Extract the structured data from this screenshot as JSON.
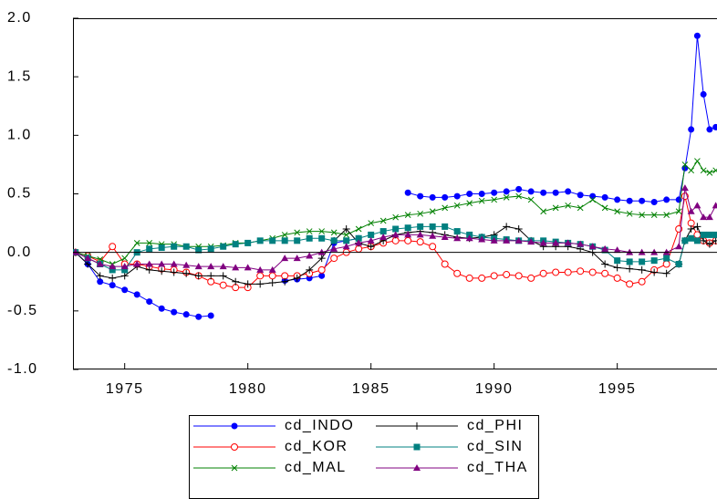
{
  "chart_data": {
    "type": "line",
    "x": [
      1973.0,
      1973.5,
      1974.0,
      1974.5,
      1975.0,
      1975.5,
      1976.0,
      1976.5,
      1977.0,
      1977.5,
      1978.0,
      1978.5,
      1979.0,
      1979.5,
      1980.0,
      1980.5,
      1981.0,
      1981.5,
      1982.0,
      1982.5,
      1983.0,
      1983.5,
      1984.0,
      1984.5,
      1985.0,
      1985.5,
      1986.0,
      1986.5,
      1987.0,
      1987.5,
      1988.0,
      1988.5,
      1989.0,
      1989.5,
      1990.0,
      1990.5,
      1991.0,
      1991.5,
      1992.0,
      1992.5,
      1993.0,
      1993.5,
      1994.0,
      1994.5,
      1995.0,
      1995.5,
      1996.0,
      1996.5,
      1997.0,
      1997.5,
      1997.75,
      1998.0,
      1998.25,
      1998.5,
      1998.75,
      1999.0
    ],
    "series": [
      {
        "name": "cd_INDO",
        "color": "#0000ff",
        "marker": "circle",
        "values": [
          0.0,
          -0.1,
          -0.25,
          -0.28,
          -0.32,
          -0.36,
          -0.42,
          -0.48,
          -0.51,
          -0.53,
          -0.55,
          -0.54,
          null,
          null,
          null,
          null,
          null,
          -0.24,
          -0.23,
          -0.22,
          -0.2,
          0.08,
          0.1,
          0.12,
          null,
          null,
          null,
          0.51,
          0.48,
          0.47,
          0.47,
          0.48,
          0.5,
          0.5,
          0.51,
          0.52,
          0.54,
          0.52,
          0.51,
          0.51,
          0.52,
          0.49,
          0.48,
          0.47,
          0.45,
          0.44,
          0.44,
          0.43,
          0.45,
          0.45,
          0.72,
          1.05,
          1.85,
          1.35,
          1.05,
          1.07
        ]
      },
      {
        "name": "cd_KOR",
        "color": "#ff0000",
        "marker": "open-circle",
        "values": [
          0.0,
          -0.03,
          -0.08,
          0.05,
          -0.1,
          -0.1,
          -0.12,
          -0.14,
          -0.15,
          -0.17,
          -0.2,
          -0.25,
          -0.28,
          -0.3,
          -0.3,
          -0.2,
          -0.2,
          -0.2,
          -0.2,
          -0.18,
          -0.15,
          -0.05,
          0.0,
          0.03,
          0.05,
          0.08,
          0.1,
          0.1,
          0.09,
          0.05,
          -0.1,
          -0.18,
          -0.22,
          -0.22,
          -0.2,
          -0.19,
          -0.2,
          -0.22,
          -0.18,
          -0.17,
          -0.17,
          -0.16,
          -0.17,
          -0.18,
          -0.22,
          -0.27,
          -0.25,
          -0.15,
          -0.1,
          0.2,
          0.48,
          0.25,
          0.15,
          0.1,
          0.08,
          0.1
        ]
      },
      {
        "name": "cd_MAL",
        "color": "#008000",
        "marker": "x",
        "values": [
          0.0,
          -0.03,
          -0.06,
          -0.1,
          -0.05,
          0.08,
          0.08,
          0.07,
          0.07,
          0.05,
          0.05,
          0.05,
          0.06,
          0.08,
          0.08,
          0.1,
          0.12,
          0.15,
          0.17,
          0.18,
          0.18,
          0.17,
          0.15,
          0.2,
          0.25,
          0.27,
          0.3,
          0.32,
          0.33,
          0.35,
          0.38,
          0.4,
          0.42,
          0.44,
          0.45,
          0.47,
          0.48,
          0.45,
          0.35,
          0.38,
          0.4,
          0.38,
          0.45,
          0.38,
          0.35,
          0.33,
          0.32,
          0.32,
          0.32,
          0.35,
          0.75,
          0.7,
          0.78,
          0.7,
          0.68,
          0.7
        ]
      },
      {
        "name": "cd_PHI",
        "color": "#000000",
        "marker": "plus",
        "values": [
          0.0,
          -0.1,
          -0.2,
          -0.22,
          -0.2,
          -0.12,
          -0.15,
          -0.16,
          -0.17,
          -0.18,
          -0.2,
          -0.2,
          -0.2,
          -0.25,
          -0.27,
          -0.27,
          -0.26,
          -0.25,
          -0.22,
          -0.15,
          -0.05,
          0.1,
          0.2,
          0.08,
          0.05,
          0.1,
          0.15,
          0.17,
          0.18,
          0.17,
          0.15,
          0.13,
          0.12,
          0.13,
          0.15,
          0.22,
          0.2,
          0.1,
          0.05,
          0.05,
          0.05,
          0.03,
          0.0,
          -0.1,
          -0.13,
          -0.14,
          -0.15,
          -0.17,
          -0.18,
          -0.1,
          0.1,
          0.2,
          0.22,
          0.1,
          0.07,
          0.1
        ]
      },
      {
        "name": "cd_SIN",
        "color": "#008080",
        "marker": "square",
        "values": [
          0.0,
          -0.05,
          -0.1,
          -0.15,
          -0.15,
          0.0,
          0.03,
          0.04,
          0.05,
          0.05,
          0.02,
          0.03,
          0.05,
          0.07,
          0.08,
          0.1,
          0.1,
          0.1,
          0.1,
          0.12,
          0.12,
          0.1,
          0.1,
          0.12,
          0.15,
          0.18,
          0.2,
          0.21,
          0.22,
          0.22,
          0.22,
          0.18,
          0.15,
          0.13,
          0.12,
          0.11,
          0.1,
          0.1,
          0.1,
          0.09,
          0.08,
          0.07,
          0.05,
          0.02,
          -0.07,
          -0.08,
          -0.08,
          -0.07,
          -0.05,
          -0.1,
          0.1,
          0.12,
          0.1,
          0.15,
          0.15,
          0.15
        ]
      },
      {
        "name": "cd_THA",
        "color": "#800080",
        "marker": "triangle",
        "values": [
          0.0,
          -0.05,
          -0.1,
          -0.12,
          -0.12,
          -0.1,
          -0.1,
          -0.1,
          -0.1,
          -0.11,
          -0.12,
          -0.12,
          -0.12,
          -0.13,
          -0.13,
          -0.15,
          -0.15,
          -0.05,
          -0.05,
          -0.03,
          0.0,
          0.03,
          0.05,
          0.08,
          0.1,
          0.13,
          0.15,
          0.15,
          0.15,
          0.14,
          0.13,
          0.12,
          0.12,
          0.11,
          0.1,
          0.1,
          0.1,
          0.09,
          0.08,
          0.08,
          0.08,
          0.07,
          0.05,
          0.03,
          0.02,
          0.0,
          0.0,
          0.0,
          0.0,
          0.05,
          0.55,
          0.35,
          0.4,
          0.3,
          0.3,
          0.4
        ]
      }
    ],
    "xlim": [
      1972.9,
      1999.05
    ],
    "xticks": [
      1975,
      1980,
      1985,
      1990,
      1995
    ],
    "ylim": [
      -1.0,
      2.0
    ],
    "yticks": [
      {
        "value": 2,
        "label": "2.0"
      },
      {
        "value": 1.5,
        "label": "1.5"
      },
      {
        "value": 1,
        "label": "1.0"
      },
      {
        "value": 0.5,
        "label": "0.5"
      },
      {
        "value": 0,
        "label": "0.0"
      },
      {
        "value": -0.5,
        "label": "-0.5"
      },
      {
        "value": -1,
        "label": "-1.0"
      }
    ],
    "hline": 0,
    "legend": "bottom"
  }
}
